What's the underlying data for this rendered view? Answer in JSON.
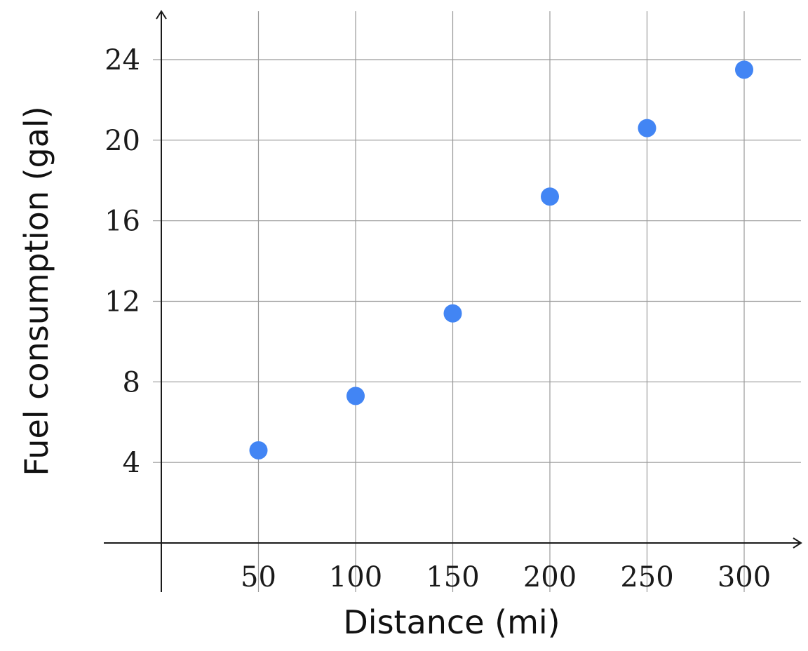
{
  "chart_data": {
    "type": "scatter",
    "title": "",
    "xlabel": "Distance (mi)",
    "ylabel": "Fuel consumption (gal)",
    "x_ticks": [
      50,
      100,
      150,
      200,
      250,
      300
    ],
    "y_ticks": [
      4,
      8,
      12,
      16,
      20,
      24
    ],
    "xlim": [
      -50,
      325
    ],
    "ylim": [
      0,
      26.2
    ],
    "grid": true,
    "point_color": "#4285f4",
    "series": [
      {
        "x": [
          50,
          100,
          150,
          200,
          250,
          300
        ],
        "y": [
          4.6,
          7.3,
          11.4,
          17.2,
          20.6,
          23.5
        ]
      }
    ]
  }
}
